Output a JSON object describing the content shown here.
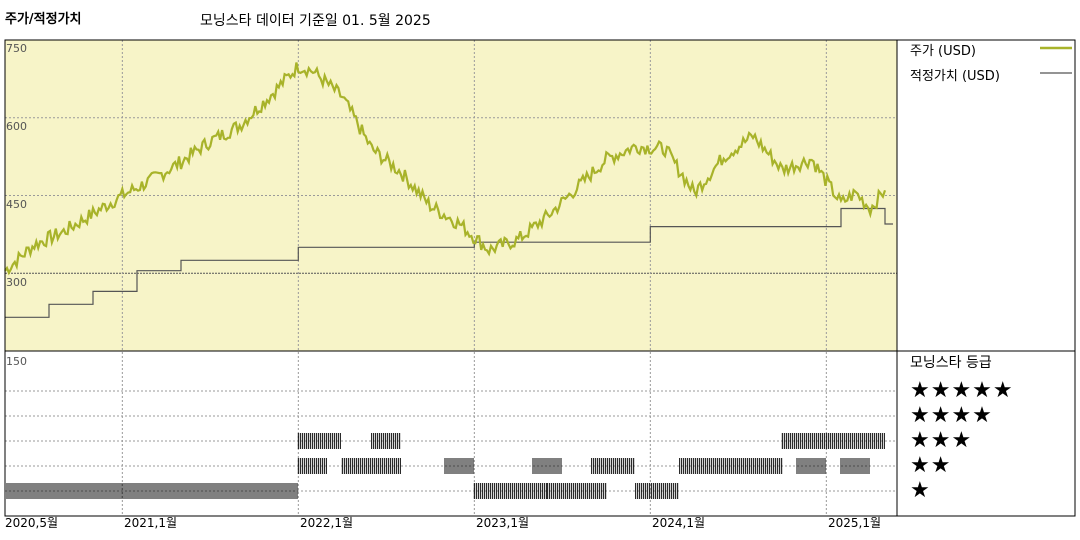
{
  "header": {
    "left_title": "주가/적정가치",
    "subtitle": "모닝스타 데이터 기준일 01. 5월 2025"
  },
  "legend": {
    "price_label": "주가 (USD)",
    "fair_value_label": "적정가치 (USD)"
  },
  "rating_panel": {
    "title": "모닝스타 등급",
    "rows": [
      "★★★★★",
      "★★★★",
      "★★★",
      "★★",
      "★"
    ]
  },
  "colors": {
    "price_line": "#a8b32a",
    "fair_value_line": "#555555",
    "upper_bg": "#f7f4c8",
    "grid": "#9a9a9a",
    "bars": "#000000"
  },
  "chart_data": {
    "type": "line",
    "series": [
      {
        "name": "주가 (USD)",
        "x": [
          "2020-05",
          "2020-07",
          "2020-09",
          "2020-11",
          "2021-01",
          "2021-03",
          "2021-05",
          "2021-07",
          "2021-09",
          "2021-11",
          "2022-01",
          "2022-02",
          "2022-04",
          "2022-06",
          "2022-08",
          "2022-10",
          "2022-12",
          "2023-02",
          "2023-04",
          "2023-06",
          "2023-08",
          "2023-10",
          "2023-12",
          "2024-02",
          "2024-04",
          "2024-06",
          "2024-08",
          "2024-10",
          "2024-12",
          "2025-02",
          "2025-03",
          "2025-04",
          "2025-05"
        ],
        "values": [
          305,
          355,
          380,
          415,
          450,
          480,
          515,
          555,
          585,
          640,
          700,
          690,
          640,
          540,
          495,
          430,
          395,
          345,
          365,
          410,
          465,
          520,
          545,
          540,
          455,
          525,
          565,
          500,
          520,
          435,
          455,
          425,
          460
        ]
      },
      {
        "name": "적정가치 (USD)",
        "x": [
          "2020-05",
          "2020-08",
          "2020-11",
          "2021-02",
          "2021-05",
          "2022-01",
          "2023-01",
          "2024-01",
          "2025-02",
          "2025-05"
        ],
        "values": [
          215,
          240,
          265,
          305,
          325,
          350,
          360,
          390,
          425,
          395
        ]
      }
    ],
    "ylim": [
      150,
      750
    ],
    "yticks": [
      750,
      600,
      450,
      300,
      150
    ],
    "xticks": [
      "2020,5월",
      "2021,1월",
      "2022,1월",
      "2023,1월",
      "2024,1월",
      "2025,1월"
    ],
    "rating_history": [
      {
        "stars": 5,
        "periods": []
      },
      {
        "stars": 4,
        "periods": []
      },
      {
        "stars": 3,
        "periods": [
          [
            "2022-01",
            "2022-04"
          ],
          [
            "2022-06",
            "2022-08"
          ],
          [
            "2024-10",
            "2025-01"
          ],
          [
            "2025-01",
            "2025-05"
          ]
        ]
      },
      {
        "stars": 2,
        "periods": [
          [
            "2022-01",
            "2022-03"
          ],
          [
            "2022-04",
            "2022-08"
          ],
          [
            "2022-11",
            "2023-01"
          ],
          [
            "2023-05",
            "2023-07"
          ],
          [
            "2023-09",
            "2023-12"
          ],
          [
            "2024-03",
            "2024-10"
          ],
          [
            "2024-11",
            "2025-01"
          ],
          [
            "2025-02",
            "2025-04"
          ]
        ]
      },
      {
        "stars": 1,
        "periods": [
          [
            "2020-05",
            "2022-01"
          ],
          [
            "2023-01",
            "2023-06"
          ],
          [
            "2023-06",
            "2023-10"
          ],
          [
            "2023-12",
            "2024-03"
          ]
        ]
      }
    ]
  }
}
